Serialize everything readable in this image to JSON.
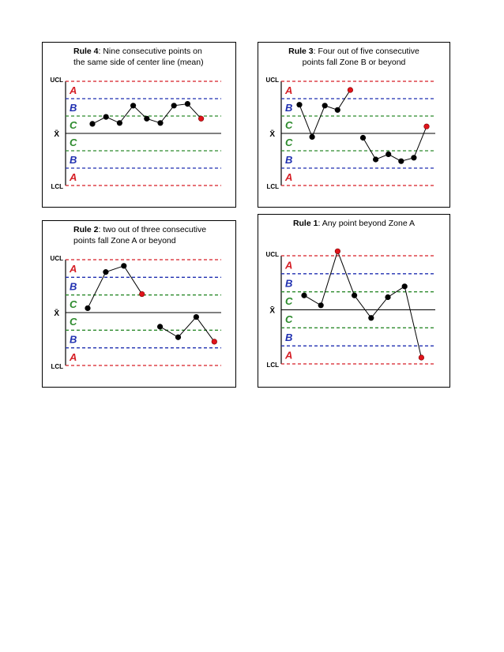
{
  "chart_data": [
    {
      "type": "line",
      "title_bold": "Rule 4",
      "title_rest": ": Nine consecutive points on",
      "title_line2": "the same side of center line (mean)",
      "labels": {
        "ucl": "UCL",
        "mean": "X̄",
        "lcl": "LCL"
      },
      "zones": [
        "A",
        "B",
        "C",
        "C",
        "B",
        "A"
      ],
      "ylim": [
        -3,
        3
      ],
      "x": [
        1,
        2,
        3,
        4,
        5,
        6,
        7,
        8,
        9
      ],
      "y": [
        0.55,
        0.95,
        0.6,
        1.6,
        0.85,
        0.6,
        1.6,
        1.7,
        0.85
      ],
      "highlight": [
        9
      ],
      "colors": {
        "A": "#d61f26",
        "B": "#1f2fb0",
        "C": "#2c8a2c",
        "point": "#000000",
        "flag": "#e0141b"
      }
    },
    {
      "type": "line",
      "title_bold": "Rule 3",
      "title_rest": ": Four out of five consecutive",
      "title_line2": "points fall Zone B or beyond",
      "labels": {
        "ucl": "UCL",
        "mean": "X̄",
        "lcl": "LCL"
      },
      "zones": [
        "A",
        "B",
        "C",
        "C",
        "B",
        "A"
      ],
      "ylim": [
        -3,
        3
      ],
      "x": [
        1,
        2,
        3,
        4,
        5,
        6,
        7,
        8,
        9,
        10,
        11
      ],
      "y": [
        1.65,
        -0.2,
        1.6,
        1.35,
        2.5,
        -0.25,
        -1.5,
        -1.2,
        -1.6,
        -1.4,
        0.4
      ],
      "highlight": [
        5,
        11
      ],
      "segments": [
        [
          1,
          5
        ],
        [
          6,
          11
        ]
      ],
      "colors": {
        "A": "#d61f26",
        "B": "#1f2fb0",
        "C": "#2c8a2c",
        "point": "#000000",
        "flag": "#e0141b"
      }
    },
    {
      "type": "line",
      "title_bold": "Rule 2",
      "title_rest": ": two out of three consecutive",
      "title_line2": "points fall Zone A or beyond",
      "labels": {
        "ucl": "UCL",
        "mean": "X̄",
        "lcl": "LCL"
      },
      "zones": [
        "A",
        "B",
        "C",
        "C",
        "B",
        "A"
      ],
      "ylim": [
        -3,
        3
      ],
      "x": [
        1,
        2,
        3,
        4,
        5,
        6,
        7,
        8
      ],
      "y": [
        0.25,
        2.3,
        2.65,
        1.05,
        -0.8,
        -1.4,
        -0.25,
        -1.65
      ],
      "highlight": [
        4,
        8
      ],
      "segments": [
        [
          1,
          4
        ],
        [
          5,
          8
        ]
      ],
      "colors": {
        "A": "#d61f26",
        "B": "#1f2fb0",
        "C": "#2c8a2c",
        "point": "#000000",
        "flag": "#e0141b"
      }
    },
    {
      "type": "line",
      "title_bold": "Rule 1",
      "title_rest": ": Any point beyond Zone A",
      "title_line2": "",
      "labels": {
        "ucl": "UCL",
        "mean": "X̄",
        "lcl": "LCL"
      },
      "zones": [
        "A",
        "B",
        "C",
        "C",
        "B",
        "A"
      ],
      "ylim": [
        -3,
        3
      ],
      "x": [
        1,
        2,
        3,
        4,
        5,
        6,
        7,
        8
      ],
      "y": [
        0.8,
        0.25,
        3.25,
        0.8,
        -0.45,
        0.7,
        1.3,
        -2.65
      ],
      "highlight": [
        3,
        8
      ],
      "colors": {
        "A": "#d61f26",
        "B": "#1f2fb0",
        "C": "#2c8a2c",
        "point": "#000000",
        "flag": "#e0141b"
      }
    }
  ]
}
